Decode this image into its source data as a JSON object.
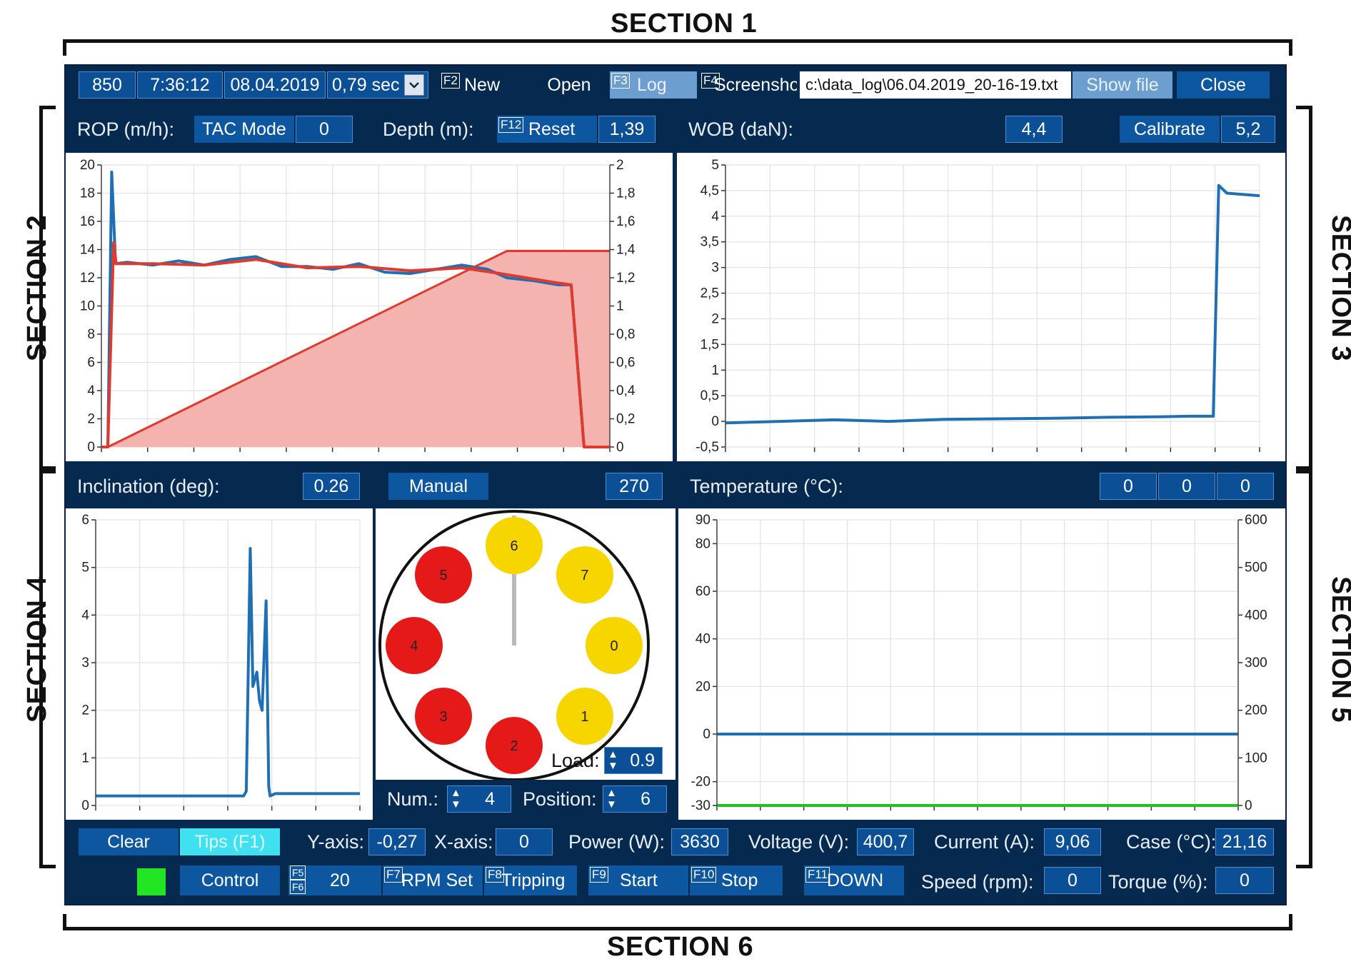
{
  "sections": {
    "s1": "SECTION 1",
    "s2": "SECTION 2",
    "s3": "SECTION 3",
    "s4": "SECTION 4",
    "s5": "SECTION 5",
    "s6": "SECTION 6"
  },
  "toolbar": {
    "counter": "850",
    "time": "7:36:12",
    "date": "08.04.2019",
    "interval": "0,79 sec",
    "new_key": "F2",
    "new_label": "New",
    "open_label": "Open",
    "log_key": "F3",
    "log_label": "Log",
    "screenshot_key": "F4",
    "screenshot_label": "Screenshot",
    "file_path": "c:\\data_log\\06.04.2019_20-16-19.txt",
    "show_file_label": "Show file",
    "close_label": "Close"
  },
  "rop_panel": {
    "rop_label": "ROP (m/h):",
    "tac_mode_label": "TAC Mode",
    "tac_mode_value": "0",
    "depth_label": "Depth (m):",
    "reset_key": "F12",
    "reset_label": "Reset",
    "depth_value": "1,39"
  },
  "wob_panel": {
    "wob_label": "WOB (daN):",
    "wob_value": "4,4",
    "calibrate_label": "Calibrate",
    "calibrate_value": "5,2"
  },
  "inclination_panel": {
    "label": "Inclination (deg):",
    "value": "0.26"
  },
  "carousel_panel": {
    "mode_label": "Manual",
    "angle_value": "270",
    "load_label": "Load:",
    "load_value": "0.9",
    "num_label": "Num.:",
    "num_value": "4",
    "position_label": "Position:",
    "position_value": "6",
    "slots": [
      {
        "num": "6",
        "color": "#f7d600"
      },
      {
        "num": "7",
        "color": "#f7d600"
      },
      {
        "num": "0",
        "color": "#f7d600"
      },
      {
        "num": "1",
        "color": "#f7d600"
      },
      {
        "num": "2",
        "color": "#e61919"
      },
      {
        "num": "3",
        "color": "#e61919"
      },
      {
        "num": "4",
        "color": "#e61919"
      },
      {
        "num": "5",
        "color": "#e61919"
      }
    ]
  },
  "temperature_panel": {
    "label": "Temperature (°C):",
    "values": [
      "0",
      "0",
      "0"
    ]
  },
  "bottom_row1": {
    "clear_label": "Clear",
    "tips_label": "Tips (F1)",
    "yaxis_label": "Y-axis:",
    "yaxis_value": "-0,27",
    "xaxis_label": "X-axis:",
    "xaxis_value": "0",
    "power_label": "Power (W):",
    "power_value": "3630",
    "voltage_label": "Voltage (V):",
    "voltage_value": "400,7",
    "current_label": "Current (A):",
    "current_value": "9,06",
    "case_label": "Case (°C):",
    "case_value": "21,16"
  },
  "bottom_row2": {
    "status_color": "#22e622",
    "control_label": "Control",
    "f5_key": "F5",
    "f6_key": "F6",
    "rpm_value": "20",
    "rpm_key": "F7",
    "rpm_set_label": "RPM Set",
    "tripping_key": "F8",
    "tripping_label": "Tripping",
    "start_key": "F9",
    "start_label": "Start",
    "stop_key": "F10",
    "stop_label": "Stop",
    "down_key": "F11",
    "down_label": "DOWN",
    "speed_label": "Speed (rpm):",
    "speed_value": "0",
    "torque_label": "Torque (%):",
    "torque_value": "0"
  },
  "chart_data": [
    {
      "type": "line",
      "name": "rop-depth",
      "ylim": [
        0,
        20
      ],
      "y_ticks": [
        "0",
        "2",
        "4",
        "6",
        "8",
        "10",
        "12",
        "14",
        "16",
        "18",
        "20"
      ],
      "y2lim": [
        0,
        2
      ],
      "y2_ticks": [
        "0",
        "0,2",
        "0,4",
        "0,6",
        "0,8",
        "1",
        "1,2",
        "1,4",
        "1,6",
        "1,8",
        "2"
      ],
      "grid": true,
      "series": [
        {
          "color": "#1f6fb5",
          "values": [
            [
              0,
              0
            ],
            [
              1,
              0
            ],
            [
              1.6,
              19.5
            ],
            [
              2.2,
              13
            ],
            [
              4,
              13.1
            ],
            [
              8,
              12.9
            ],
            [
              12,
              13.2
            ],
            [
              16,
              12.9
            ],
            [
              20,
              13.3
            ],
            [
              24,
              13.5
            ],
            [
              28,
              12.8
            ],
            [
              32,
              12.8
            ],
            [
              36,
              12.6
            ],
            [
              40,
              13
            ],
            [
              44,
              12.4
            ],
            [
              48,
              12.3
            ],
            [
              52,
              12.6
            ],
            [
              56,
              12.9
            ],
            [
              60,
              12.6
            ],
            [
              63,
              12.0
            ],
            [
              67,
              11.8
            ],
            [
              71,
              11.5
            ],
            [
              73,
              11.5
            ],
            [
              75,
              0
            ],
            [
              79,
              0
            ]
          ]
        },
        {
          "color": "#e03a2f",
          "values": [
            [
              0,
              0
            ],
            [
              1,
              0
            ],
            [
              1.9,
              14.5
            ],
            [
              2.3,
              13
            ],
            [
              8,
              13.0
            ],
            [
              16,
              12.9
            ],
            [
              24,
              13.3
            ],
            [
              32,
              12.7
            ],
            [
              40,
              12.8
            ],
            [
              48,
              12.5
            ],
            [
              56,
              12.7
            ],
            [
              62,
              12.3
            ],
            [
              70,
              11.7
            ],
            [
              73,
              11.5
            ],
            [
              75,
              0
            ],
            [
              79,
              0
            ]
          ]
        },
        {
          "color": "#e03a2f",
          "fill": "#f5b3b0",
          "axis": "y2",
          "values": [
            [
              0,
              0
            ],
            [
              1,
              0
            ],
            [
              63,
              1.39
            ],
            [
              79,
              1.39
            ]
          ]
        }
      ]
    },
    {
      "type": "line",
      "name": "wob",
      "ylim": [
        -0.5,
        5
      ],
      "y_ticks": [
        "-0,5",
        "0",
        "0,5",
        "1",
        "1,5",
        "2",
        "2,5",
        "3",
        "3,5",
        "4",
        "4,5",
        "5"
      ],
      "grid": true,
      "series": [
        {
          "color": "#1f6fb5",
          "values": [
            [
              0,
              -0.03
            ],
            [
              10,
              0.0
            ],
            [
              20,
              0.03
            ],
            [
              30,
              0.0
            ],
            [
              40,
              0.04
            ],
            [
              50,
              0.05
            ],
            [
              60,
              0.06
            ],
            [
              70,
              0.08
            ],
            [
              80,
              0.09
            ],
            [
              85,
              0.1
            ],
            [
              89.5,
              0.1
            ],
            [
              90.5,
              4.6
            ],
            [
              92,
              4.45
            ],
            [
              98,
              4.4
            ]
          ]
        }
      ]
    },
    {
      "type": "line",
      "name": "inclination",
      "ylim": [
        0,
        6
      ],
      "y_ticks": [
        "0",
        "1",
        "2",
        "3",
        "4",
        "5",
        "6"
      ],
      "grid": true,
      "series": [
        {
          "color": "#1f6fb5",
          "values": [
            [
              0,
              0.2
            ],
            [
              56,
              0.2
            ],
            [
              57,
              0.3
            ],
            [
              58.5,
              5.4
            ],
            [
              59.5,
              2.5
            ],
            [
              61,
              2.8
            ],
            [
              62,
              2.2
            ],
            [
              63,
              2.0
            ],
            [
              64.5,
              4.3
            ],
            [
              65.5,
              0.4
            ],
            [
              66,
              0.2
            ],
            [
              68,
              0.25
            ],
            [
              100,
              0.25
            ]
          ]
        }
      ]
    },
    {
      "type": "line",
      "name": "temperature",
      "ylim": [
        -30,
        90
      ],
      "y_ticks": [
        "-30",
        "-20",
        "0",
        "20",
        "40",
        "60",
        "80",
        "90"
      ],
      "y2lim": [
        0,
        600
      ],
      "y2_ticks": [
        "0",
        "100",
        "200",
        "300",
        "400",
        "500",
        "600"
      ],
      "grid": true,
      "series": [
        {
          "color": "#1f6fb5",
          "values": [
            [
              0,
              0
            ],
            [
              100,
              0
            ]
          ]
        },
        {
          "color": "#22c022",
          "values": [
            [
              0,
              -30
            ],
            [
              100,
              -30
            ]
          ]
        }
      ]
    }
  ]
}
